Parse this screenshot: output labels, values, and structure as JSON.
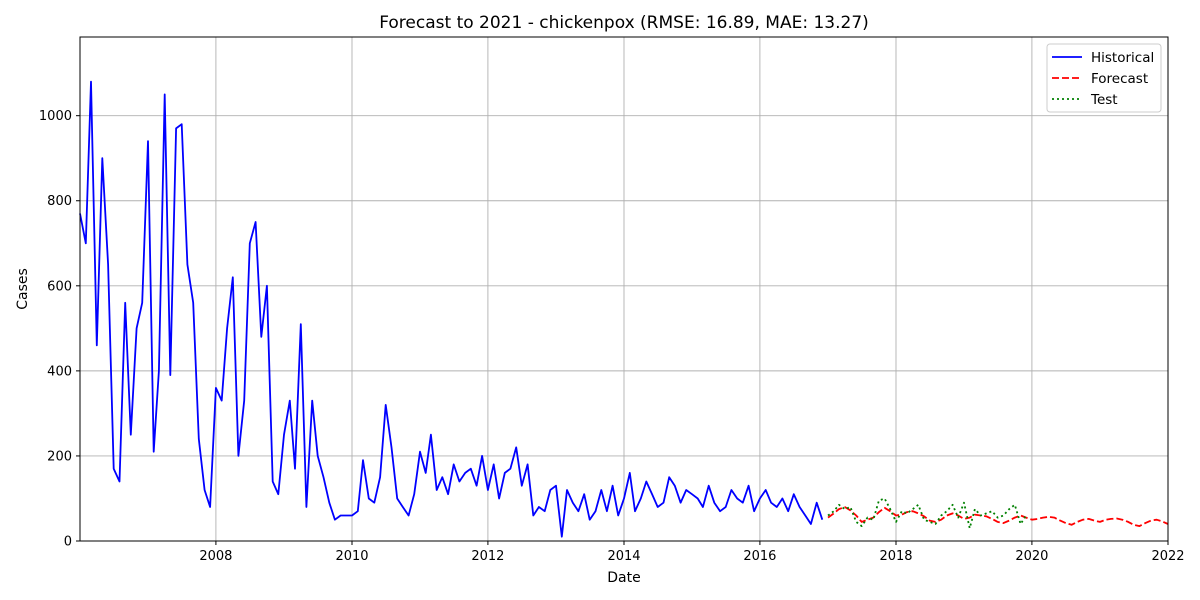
{
  "chart_data": {
    "type": "line",
    "title": "Forecast to 2021 - chickenpox (RMSE: 16.89, MAE: 13.27)",
    "xlabel": "Date",
    "ylabel": "Cases",
    "xlim": [
      "2006-01-01",
      "2022-01-01"
    ],
    "ylim": [
      0,
      1185
    ],
    "x_ticks": [
      "2008",
      "2010",
      "2012",
      "2014",
      "2016",
      "2018",
      "2020",
      "2022"
    ],
    "y_ticks": [
      "0",
      "200",
      "400",
      "600",
      "800",
      "1000"
    ],
    "grid": true,
    "legend_position": "top-right",
    "series": [
      {
        "name": "Historical",
        "color": "#0000ff",
        "style": "solid",
        "x": [
          "2006-01-01",
          "2006-02-01",
          "2006-03-01",
          "2006-04-01",
          "2006-05-01",
          "2006-06-01",
          "2006-07-01",
          "2006-08-01",
          "2006-09-01",
          "2006-10-01",
          "2006-11-01",
          "2006-12-01",
          "2007-01-01",
          "2007-02-01",
          "2007-03-01",
          "2007-04-01",
          "2007-05-01",
          "2007-06-01",
          "2007-07-01",
          "2007-08-01",
          "2007-09-01",
          "2007-10-01",
          "2007-11-01",
          "2007-12-01",
          "2008-01-01",
          "2008-02-01",
          "2008-03-01",
          "2008-04-01",
          "2008-05-01",
          "2008-06-01",
          "2008-07-01",
          "2008-08-01",
          "2008-09-01",
          "2008-10-01",
          "2008-11-01",
          "2008-12-01",
          "2009-01-01",
          "2009-02-01",
          "2009-03-01",
          "2009-04-01",
          "2009-05-01",
          "2009-06-01",
          "2009-07-01",
          "2009-08-01",
          "2009-09-01",
          "2009-10-01",
          "2009-11-01",
          "2009-12-01",
          "2010-01-01",
          "2010-02-01",
          "2010-03-01",
          "2010-04-01",
          "2010-05-01",
          "2010-06-01",
          "2010-07-01",
          "2010-08-01",
          "2010-09-01",
          "2010-10-01",
          "2010-11-01",
          "2010-12-01",
          "2011-01-01",
          "2011-02-01",
          "2011-03-01",
          "2011-04-01",
          "2011-05-01",
          "2011-06-01",
          "2011-07-01",
          "2011-08-01",
          "2011-09-01",
          "2011-10-01",
          "2011-11-01",
          "2011-12-01",
          "2012-01-01",
          "2012-02-01",
          "2012-03-01",
          "2012-04-01",
          "2012-05-01",
          "2012-06-01",
          "2012-07-01",
          "2012-08-01",
          "2012-09-01",
          "2012-10-01",
          "2012-11-01",
          "2012-12-01",
          "2013-01-01",
          "2013-02-01",
          "2013-03-01",
          "2013-04-01",
          "2013-05-01",
          "2013-06-01",
          "2013-07-01",
          "2013-08-01",
          "2013-09-01",
          "2013-10-01",
          "2013-11-01",
          "2013-12-01",
          "2014-01-01",
          "2014-02-01",
          "2014-03-01",
          "2014-04-01",
          "2014-05-01",
          "2014-06-01",
          "2014-07-01",
          "2014-08-01",
          "2014-09-01",
          "2014-10-01",
          "2014-11-01",
          "2014-12-01",
          "2015-01-01",
          "2015-02-01",
          "2015-03-01",
          "2015-04-01",
          "2015-05-01",
          "2015-06-01",
          "2015-07-01",
          "2015-08-01",
          "2015-09-01",
          "2015-10-01",
          "2015-11-01",
          "2015-12-01",
          "2016-01-01",
          "2016-02-01",
          "2016-03-01",
          "2016-04-01",
          "2016-05-01",
          "2016-06-01",
          "2016-07-01",
          "2016-08-01",
          "2016-09-01",
          "2016-10-01",
          "2016-11-01",
          "2016-12-01"
        ],
        "values": [
          770,
          700,
          1080,
          460,
          900,
          650,
          170,
          140,
          560,
          250,
          500,
          560,
          940,
          210,
          400,
          1050,
          390,
          970,
          980,
          650,
          560,
          240,
          120,
          80,
          360,
          330,
          500,
          620,
          200,
          330,
          700,
          750,
          480,
          600,
          140,
          110,
          250,
          330,
          170,
          510,
          80,
          330,
          200,
          150,
          90,
          50,
          60,
          60,
          60,
          70,
          190,
          100,
          90,
          150,
          320,
          220,
          100,
          80,
          60,
          110,
          210,
          160,
          250,
          120,
          150,
          110,
          180,
          140,
          160,
          170,
          130,
          200,
          120,
          180,
          100,
          160,
          170,
          220,
          130,
          180,
          60,
          80,
          70,
          120,
          130,
          10,
          120,
          90,
          70,
          110,
          50,
          70,
          120,
          70,
          130,
          60,
          100,
          160,
          70,
          100,
          140,
          110,
          80,
          90,
          150,
          130,
          90,
          120,
          110,
          100,
          80,
          130,
          90,
          70,
          80,
          120,
          100,
          90,
          130,
          70,
          100,
          120,
          90,
          80,
          100,
          70,
          110,
          80,
          60,
          40,
          90,
          50
        ]
      },
      {
        "name": "Forecast",
        "color": "#ff0000",
        "style": "dashed",
        "x": [
          "2017-01-01",
          "2017-02-01",
          "2017-03-01",
          "2017-04-01",
          "2017-05-01",
          "2017-06-01",
          "2017-07-01",
          "2017-08-01",
          "2017-09-01",
          "2017-10-01",
          "2017-11-01",
          "2017-12-01",
          "2018-01-01",
          "2018-02-01",
          "2018-03-01",
          "2018-04-01",
          "2018-05-01",
          "2018-06-01",
          "2018-07-01",
          "2018-08-01",
          "2018-09-01",
          "2018-10-01",
          "2018-11-01",
          "2018-12-01",
          "2019-01-01",
          "2019-02-01",
          "2019-03-01",
          "2019-04-01",
          "2019-05-01",
          "2019-06-01",
          "2019-07-01",
          "2019-08-01",
          "2019-09-01",
          "2019-10-01",
          "2019-11-01",
          "2019-12-01",
          "2020-01-01",
          "2020-02-01",
          "2020-03-01",
          "2020-04-01",
          "2020-05-01",
          "2020-06-01",
          "2020-07-01",
          "2020-08-01",
          "2020-09-01",
          "2020-10-01",
          "2020-11-01",
          "2020-12-01",
          "2021-01-01",
          "2021-02-01",
          "2021-03-01",
          "2021-04-01",
          "2021-05-01",
          "2021-06-01",
          "2021-07-01",
          "2021-08-01",
          "2021-09-01",
          "2021-10-01",
          "2021-11-01",
          "2021-12-01",
          "2022-01-01"
        ],
        "values": [
          55,
          65,
          75,
          80,
          72,
          60,
          45,
          50,
          55,
          68,
          78,
          70,
          60,
          62,
          68,
          70,
          65,
          58,
          48,
          45,
          50,
          60,
          65,
          60,
          52,
          55,
          62,
          60,
          58,
          52,
          45,
          42,
          48,
          55,
          60,
          55,
          50,
          52,
          55,
          57,
          55,
          48,
          42,
          38,
          45,
          50,
          52,
          48,
          45,
          50,
          52,
          53,
          50,
          45,
          38,
          35,
          42,
          48,
          50,
          46,
          40
        ]
      },
      {
        "name": "Test",
        "color": "#008000",
        "style": "dotted",
        "x": [
          "2017-01-01",
          "2017-02-01",
          "2017-03-01",
          "2017-04-01",
          "2017-05-01",
          "2017-06-01",
          "2017-07-01",
          "2017-08-01",
          "2017-09-01",
          "2017-10-01",
          "2017-11-01",
          "2017-12-01",
          "2018-01-01",
          "2018-02-01",
          "2018-03-01",
          "2018-04-01",
          "2018-05-01",
          "2018-06-01",
          "2018-07-01",
          "2018-08-01",
          "2018-09-01",
          "2018-10-01",
          "2018-11-01",
          "2018-12-01",
          "2019-01-01",
          "2019-02-01",
          "2019-03-01",
          "2019-04-01",
          "2019-05-01",
          "2019-06-01",
          "2019-07-01",
          "2019-08-01",
          "2019-09-01",
          "2019-10-01",
          "2019-11-01",
          "2019-12-01"
        ],
        "values": [
          60,
          70,
          85,
          75,
          80,
          45,
          35,
          55,
          50,
          95,
          100,
          75,
          45,
          70,
          65,
          75,
          85,
          50,
          45,
          40,
          60,
          70,
          85,
          55,
          90,
          30,
          75,
          60,
          65,
          70,
          55,
          60,
          75,
          85,
          40,
          60
        ]
      }
    ]
  }
}
